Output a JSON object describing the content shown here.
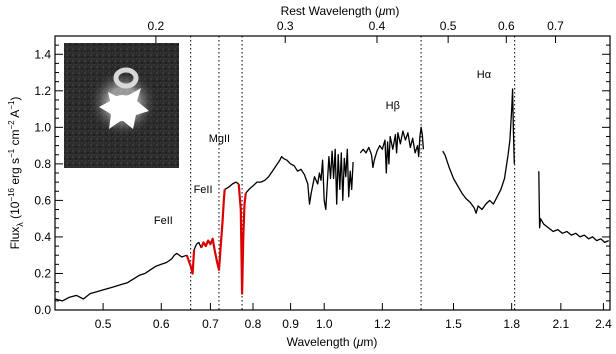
{
  "chart_data": {
    "type": "line",
    "title": "",
    "xlabel": "Wavelength (μm)",
    "x2label": "Rest Wavelength (μm)",
    "ylabel": "Flux_λ (10^-16 erg s^-1 cm^-2 A^-1)",
    "ylabel_parts": {
      "flux": "Flux",
      "lambda": "λ",
      "open": " (10",
      "exp": "−16",
      "erg": " erg s",
      "exp_s": "−1",
      "cm": " cm",
      "exp_cm": "−2",
      "angstrom": " A",
      "exp_a": "−1",
      "close": ")"
    },
    "xlabel_parts": {
      "text": "Wavelength (",
      "mu": "μ",
      "unit": "m)"
    },
    "x2label_parts": {
      "text": "Rest Wavelength (",
      "mu": "μ",
      "unit": "m)"
    },
    "xlim": [
      0.43,
      2.45
    ],
    "xscale": "log",
    "ylim": [
      0.0,
      1.5
    ],
    "x_ticks": [
      {
        "value": 0.5,
        "label": "0.5"
      },
      {
        "value": 0.6,
        "label": "0.6"
      },
      {
        "value": 0.7,
        "label": "0.7"
      },
      {
        "value": 0.8,
        "label": "0.8"
      },
      {
        "value": 0.9,
        "label": "0.9"
      },
      {
        "value": 1.0,
        "label": "1.0"
      },
      {
        "value": 1.2,
        "label": "1.2"
      },
      {
        "value": 1.5,
        "label": "1.5"
      },
      {
        "value": 1.8,
        "label": "1.8"
      },
      {
        "value": 2.1,
        "label": "2.1"
      },
      {
        "value": 2.4,
        "label": "2.4"
      }
    ],
    "y_ticks": [
      {
        "value": 0.0,
        "label": "0.0"
      },
      {
        "value": 0.2,
        "label": "0.2"
      },
      {
        "value": 0.4,
        "label": "0.4"
      },
      {
        "value": 0.6,
        "label": "0.6"
      },
      {
        "value": 0.8,
        "label": "0.8"
      },
      {
        "value": 1.0,
        "label": "1.0"
      },
      {
        "value": 1.2,
        "label": "1.2"
      },
      {
        "value": 1.4,
        "label": "1.4"
      }
    ],
    "rest_ticks": [
      {
        "rest": 0.2,
        "label": "0.2"
      },
      {
        "rest": 0.3,
        "label": "0.3"
      },
      {
        "rest": 0.4,
        "label": "0.4"
      },
      {
        "rest": 0.5,
        "label": "0.5"
      },
      {
        "rest": 0.6,
        "label": "0.6"
      },
      {
        "rest": 0.7,
        "label": "0.7"
      }
    ],
    "rest_scale_factor": 2.95,
    "vertical_lines": [
      {
        "x": 0.658
      },
      {
        "x": 0.719
      },
      {
        "x": 0.773
      },
      {
        "x": 1.355
      },
      {
        "x": 1.817
      }
    ],
    "line_labels": [
      {
        "label": "FeII",
        "x": 0.604,
        "y": 0.47
      },
      {
        "label": "FeII",
        "x": 0.684,
        "y": 0.64
      },
      {
        "label": "MgII",
        "x": 0.72,
        "y": 0.92
      },
      {
        "label": "Hβ",
        "x": 1.24,
        "y": 1.1
      },
      {
        "label": "Hα",
        "x": 1.65,
        "y": 1.27
      }
    ],
    "series": [
      {
        "color": "#000000",
        "segments": [
          [
            [
              0.43,
              0.06
            ],
            [
              0.44,
              0.05
            ],
            [
              0.45,
              0.07
            ],
            [
              0.46,
              0.08
            ],
            [
              0.47,
              0.06
            ],
            [
              0.48,
              0.09
            ],
            [
              0.49,
              0.1
            ],
            [
              0.5,
              0.11
            ],
            [
              0.51,
              0.12
            ],
            [
              0.52,
              0.13
            ],
            [
              0.53,
              0.14
            ],
            [
              0.54,
              0.15
            ],
            [
              0.55,
              0.17
            ],
            [
              0.56,
              0.19
            ],
            [
              0.57,
              0.2
            ],
            [
              0.58,
              0.22
            ],
            [
              0.59,
              0.24
            ],
            [
              0.6,
              0.25
            ],
            [
              0.61,
              0.26
            ],
            [
              0.62,
              0.28
            ],
            [
              0.625,
              0.3
            ],
            [
              0.63,
              0.31
            ],
            [
              0.64,
              0.29
            ],
            [
              0.65,
              0.3
            ]
          ],
          [
            [
              0.665,
              0.33
            ],
            [
              0.67,
              0.36
            ],
            [
              0.675,
              0.37
            ],
            [
              0.68,
              0.34
            ]
          ],
          [
            [
              0.732,
              0.66
            ],
            [
              0.74,
              0.67
            ],
            [
              0.75,
              0.69
            ],
            [
              0.758,
              0.7
            ],
            [
              0.765,
              0.69
            ]
          ],
          [
            [
              0.782,
              0.64
            ],
            [
              0.79,
              0.66
            ],
            [
              0.8,
              0.68
            ],
            [
              0.81,
              0.7
            ],
            [
              0.82,
              0.7
            ],
            [
              0.83,
              0.71
            ],
            [
              0.84,
              0.73
            ],
            [
              0.85,
              0.76
            ],
            [
              0.86,
              0.79
            ],
            [
              0.87,
              0.82
            ],
            [
              0.875,
              0.84
            ],
            [
              0.88,
              0.83
            ],
            [
              0.89,
              0.82
            ],
            [
              0.9,
              0.8
            ],
            [
              0.91,
              0.79
            ],
            [
              0.92,
              0.76
            ],
            [
              0.93,
              0.77
            ],
            [
              0.94,
              0.74
            ],
            [
              0.95,
              0.69
            ],
            [
              0.955,
              0.58
            ],
            [
              0.96,
              0.64
            ],
            [
              0.97,
              0.73
            ],
            [
              0.98,
              0.69
            ],
            [
              0.985,
              0.75
            ],
            [
              0.99,
              0.71
            ],
            [
              0.995,
              0.82
            ],
            [
              1.0,
              0.6
            ],
            [
              1.005,
              0.55
            ],
            [
              1.01,
              0.7
            ],
            [
              1.015,
              0.84
            ],
            [
              1.02,
              0.72
            ],
            [
              1.025,
              0.87
            ],
            [
              1.03,
              0.72
            ],
            [
              1.035,
              0.88
            ],
            [
              1.04,
              0.58
            ],
            [
              1.045,
              0.85
            ],
            [
              1.05,
              0.66
            ],
            [
              1.055,
              0.86
            ],
            [
              1.06,
              0.6
            ],
            [
              1.065,
              0.83
            ],
            [
              1.07,
              0.73
            ],
            [
              1.075,
              0.88
            ],
            [
              1.08,
              0.62
            ],
            [
              1.085,
              0.76
            ],
            [
              1.09,
              0.66
            ],
            [
              1.095,
              0.81
            ]
          ],
          [
            [
              1.12,
              0.86
            ],
            [
              1.13,
              0.88
            ],
            [
              1.14,
              0.86
            ],
            [
              1.15,
              0.89
            ],
            [
              1.16,
              0.85
            ],
            [
              1.165,
              0.78
            ],
            [
              1.17,
              0.82
            ],
            [
              1.18,
              0.87
            ],
            [
              1.19,
              0.9
            ],
            [
              1.2,
              0.88
            ],
            [
              1.21,
              0.93
            ],
            [
              1.215,
              0.75
            ],
            [
              1.22,
              0.92
            ],
            [
              1.225,
              0.8
            ],
            [
              1.23,
              0.95
            ],
            [
              1.24,
              0.88
            ],
            [
              1.25,
              0.96
            ],
            [
              1.255,
              0.86
            ],
            [
              1.26,
              0.97
            ],
            [
              1.27,
              0.91
            ],
            [
              1.28,
              0.98
            ],
            [
              1.29,
              0.93
            ],
            [
              1.3,
              0.97
            ],
            [
              1.31,
              0.89
            ],
            [
              1.32,
              0.94
            ],
            [
              1.33,
              0.86
            ],
            [
              1.34,
              0.9
            ],
            [
              1.345,
              0.84
            ],
            [
              1.35,
              0.95
            ],
            [
              1.355,
              1.0
            ],
            [
              1.36,
              0.96
            ],
            [
              1.365,
              0.88
            ]
          ],
          [
            [
              1.45,
              0.87
            ],
            [
              1.46,
              0.85
            ],
            [
              1.48,
              0.78
            ],
            [
              1.5,
              0.72
            ],
            [
              1.52,
              0.68
            ],
            [
              1.54,
              0.64
            ],
            [
              1.56,
              0.61
            ],
            [
              1.58,
              0.59
            ],
            [
              1.6,
              0.56
            ],
            [
              1.61,
              0.53
            ],
            [
              1.62,
              0.57
            ],
            [
              1.64,
              0.55
            ],
            [
              1.66,
              0.58
            ],
            [
              1.68,
              0.6
            ],
            [
              1.7,
              0.58
            ],
            [
              1.72,
              0.62
            ],
            [
              1.74,
              0.66
            ],
            [
              1.76,
              0.72
            ],
            [
              1.78,
              0.85
            ],
            [
              1.79,
              0.93
            ],
            [
              1.8,
              1.1
            ],
            [
              1.805,
              1.21
            ],
            [
              1.81,
              0.98
            ],
            [
              1.815,
              0.8
            ]
          ],
          [
            [
              1.96,
              0.76
            ],
            [
              1.965,
              0.45
            ],
            [
              1.97,
              0.5
            ],
            [
              1.99,
              0.47
            ],
            [
              2.02,
              0.45
            ],
            [
              2.05,
              0.43
            ],
            [
              2.08,
              0.44
            ],
            [
              2.11,
              0.42
            ],
            [
              2.14,
              0.43
            ],
            [
              2.17,
              0.41
            ],
            [
              2.2,
              0.42
            ],
            [
              2.23,
              0.4
            ],
            [
              2.26,
              0.41
            ],
            [
              2.29,
              0.39
            ],
            [
              2.32,
              0.4
            ],
            [
              2.35,
              0.38
            ],
            [
              2.38,
              0.39
            ],
            [
              2.41,
              0.37
            ],
            [
              2.44,
              0.38
            ]
          ]
        ]
      },
      {
        "color": "#dd0000",
        "segments": [
          [
            [
              0.65,
              0.3
            ],
            [
              0.654,
              0.27
            ],
            [
              0.658,
              0.24
            ],
            [
              0.662,
              0.2
            ],
            [
              0.665,
              0.33
            ]
          ],
          [
            [
              0.68,
              0.34
            ],
            [
              0.685,
              0.37
            ],
            [
              0.69,
              0.35
            ],
            [
              0.695,
              0.38
            ],
            [
              0.7,
              0.36
            ],
            [
              0.705,
              0.39
            ],
            [
              0.71,
              0.32
            ],
            [
              0.715,
              0.26
            ],
            [
              0.719,
              0.22
            ],
            [
              0.723,
              0.35
            ],
            [
              0.727,
              0.48
            ],
            [
              0.73,
              0.6
            ],
            [
              0.732,
              0.66
            ]
          ],
          [
            [
              0.765,
              0.69
            ],
            [
              0.77,
              0.55
            ],
            [
              0.773,
              0.09
            ],
            [
              0.776,
              0.4
            ],
            [
              0.779,
              0.58
            ],
            [
              0.782,
              0.64
            ]
          ]
        ]
      }
    ]
  }
}
